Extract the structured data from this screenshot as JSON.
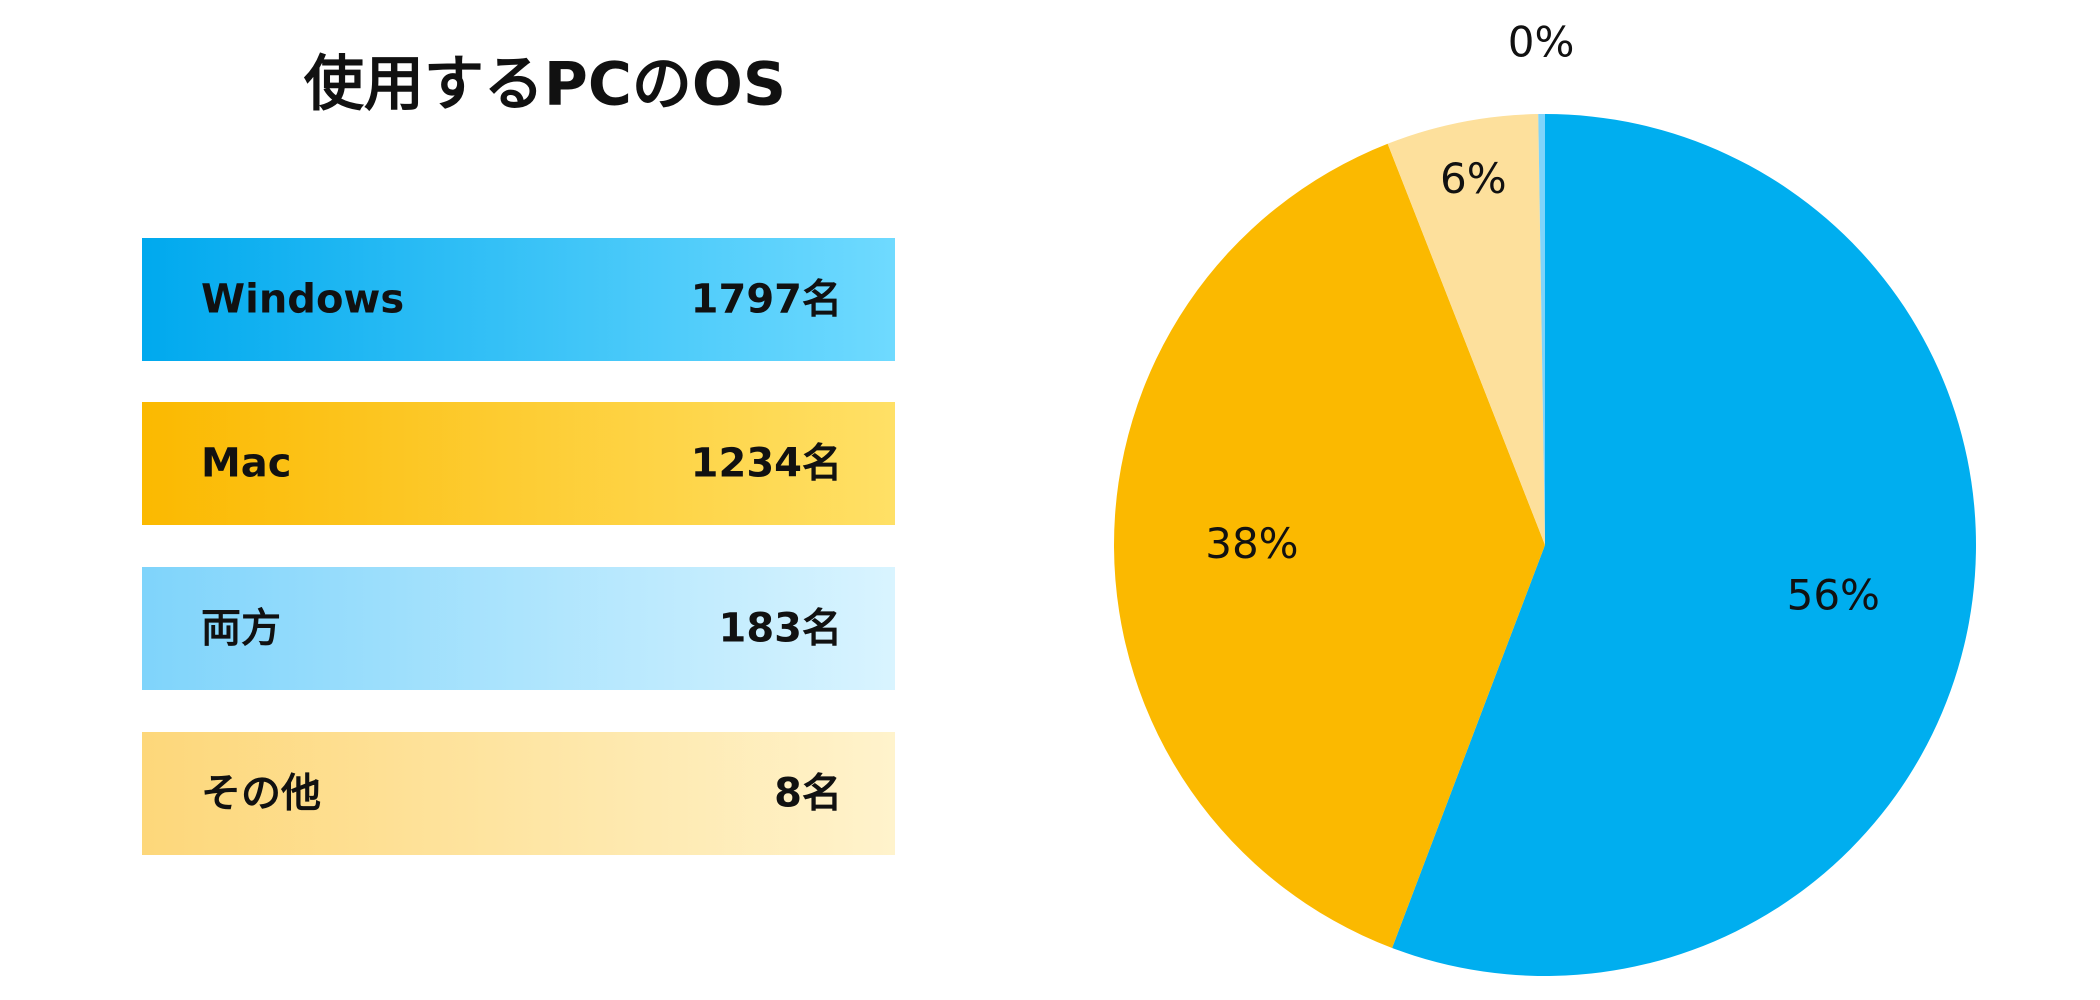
{
  "chart_data": {
    "type": "pie",
    "title": "使用するPCのOS",
    "categories": [
      "Windows",
      "Mac",
      "両方",
      "その他"
    ],
    "counts": [
      "1797名",
      "1234名",
      "183名",
      "8名"
    ],
    "values": [
      55.8,
      38.3,
      5.7,
      0.25
    ],
    "value_labels": [
      "56%",
      "38%",
      "6%",
      "0%"
    ],
    "colors": [
      "#00aeef",
      "#fbb900",
      "#fde09c",
      "#7fd4fb"
    ],
    "card_gradients": [
      [
        "#00a9ee",
        "#6fdaff"
      ],
      [
        "#fbb900",
        "#ffe066"
      ],
      [
        "#7fd4fb",
        "#d9f4ff"
      ],
      [
        "#fdd77a",
        "#fff3cc"
      ]
    ]
  }
}
